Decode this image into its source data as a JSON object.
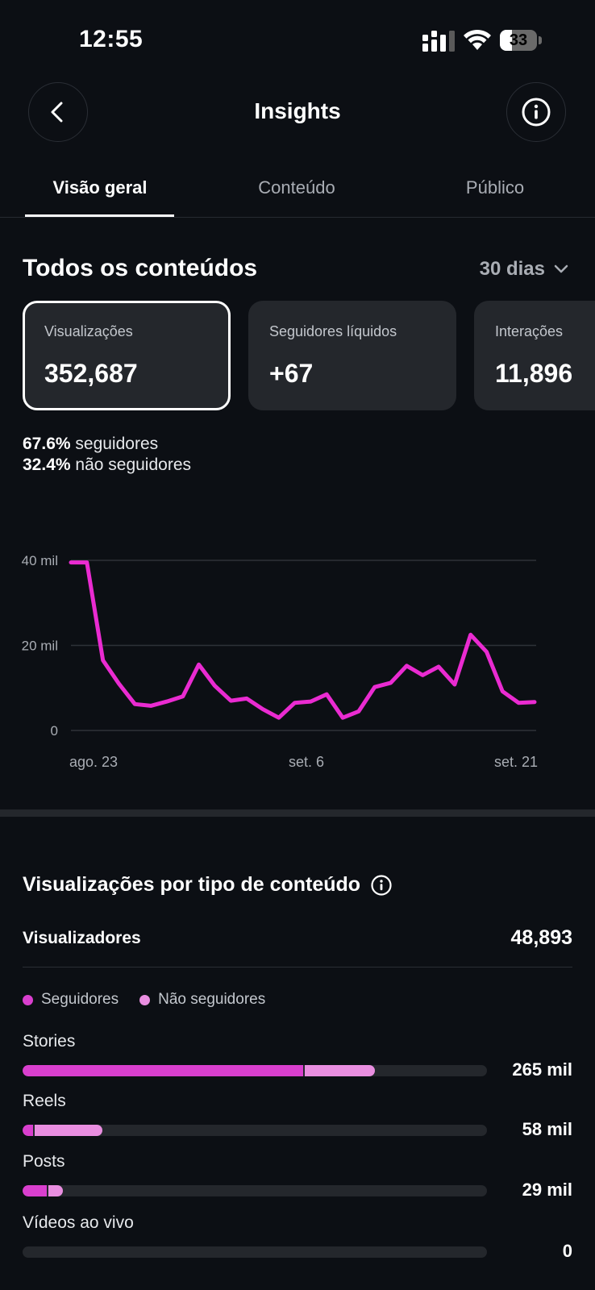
{
  "status_bar": {
    "time": "12:55",
    "battery": "33",
    "battery_level": 0.33
  },
  "header": {
    "title": "Insights"
  },
  "tabs": [
    {
      "label": "Visão geral",
      "active": true
    },
    {
      "label": "Conteúdo",
      "active": false
    },
    {
      "label": "Público",
      "active": false
    }
  ],
  "overview": {
    "title": "Todos os conteúdos",
    "period": "30 dias",
    "cards": [
      {
        "label": "Visualizações",
        "value": "352,687",
        "selected": true
      },
      {
        "label": "Seguidores líquidos",
        "value": "+67",
        "selected": false
      },
      {
        "label": "Interações",
        "value": "11,896",
        "selected": false
      }
    ],
    "split": {
      "followers_pct": "67.6%",
      "followers_label": "seguidores",
      "non_followers_pct": "32.4%",
      "non_followers_label": "não seguidores"
    }
  },
  "chart_data": {
    "type": "line",
    "x_tick_labels": [
      "ago. 23",
      "set. 6",
      "set. 21"
    ],
    "y_tick_labels": [
      "0",
      "20 mil",
      "40 mil"
    ],
    "y_ticks": [
      0,
      20000,
      40000
    ],
    "ylim": [
      0,
      40000
    ],
    "grid": true,
    "series": [
      {
        "color": "#ea2bd1",
        "values": [
          39500,
          39500,
          16500,
          11000,
          6200,
          5800,
          6800,
          8000,
          15500,
          10500,
          7000,
          7500,
          5000,
          3000,
          6500,
          6800,
          8500,
          3000,
          4500,
          10200,
          11200,
          15200,
          13000,
          15000,
          10800,
          22500,
          18500,
          9200,
          6500,
          6700
        ]
      }
    ]
  },
  "content_type": {
    "title": "Visualizações por tipo de conteúdo",
    "viewers_label": "Visualizadores",
    "viewers_value": "48,893",
    "legend": [
      {
        "label": "Seguidores",
        "color": "#d93fce"
      },
      {
        "label": "Não seguidores",
        "color": "#e98ee0"
      }
    ],
    "rows": [
      {
        "label": "Stories",
        "value": "265 mil",
        "followers_fraction": 0.605,
        "non_followers_fraction": 0.15
      },
      {
        "label": "Reels",
        "value": "58 mil",
        "followers_fraction": 0.022,
        "non_followers_fraction": 0.146
      },
      {
        "label": "Posts",
        "value": "29 mil",
        "followers_fraction": 0.052,
        "non_followers_fraction": 0.032
      },
      {
        "label": "Vídeos ao vivo",
        "value": "0",
        "followers_fraction": 0,
        "non_followers_fraction": 0
      }
    ]
  }
}
